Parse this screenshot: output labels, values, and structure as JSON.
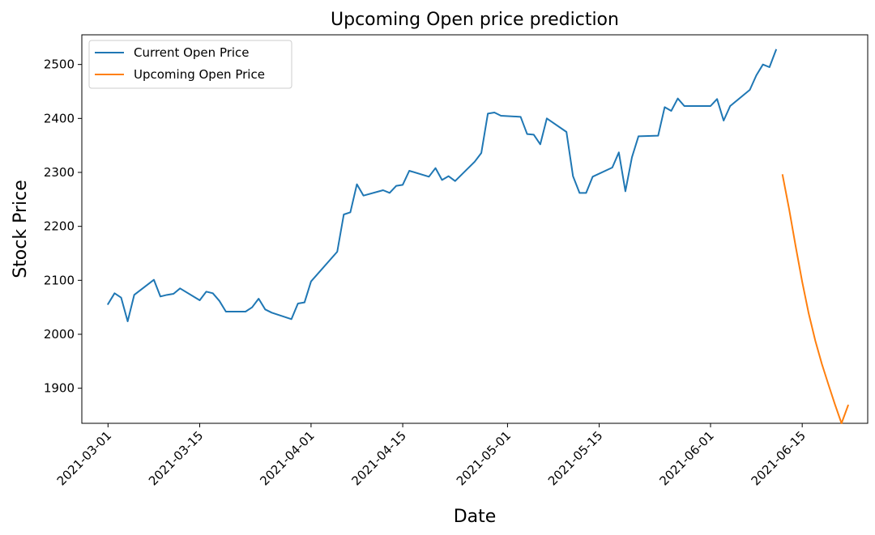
{
  "chart_data": {
    "type": "line",
    "title": "Upcoming Open price prediction",
    "xlabel": "Date",
    "ylabel": "Stock Price",
    "grid": false,
    "legend_position": "top-left",
    "x_axis_type": "date",
    "xlim": [
      "2021-02-25",
      "2021-06-25"
    ],
    "ylim": [
      1835,
      2555
    ],
    "x_ticks": [
      "2021-03-01",
      "2021-03-15",
      "2021-04-01",
      "2021-04-15",
      "2021-05-01",
      "2021-05-15",
      "2021-06-01",
      "2021-06-15"
    ],
    "y_ticks": [
      1900,
      2000,
      2100,
      2200,
      2300,
      2400,
      2500
    ],
    "series": [
      {
        "name": "Current Open Price",
        "color": "#1f77b4",
        "x": [
          "2021-03-01",
          "2021-03-02",
          "2021-03-03",
          "2021-03-04",
          "2021-03-05",
          "2021-03-08",
          "2021-03-09",
          "2021-03-10",
          "2021-03-11",
          "2021-03-12",
          "2021-03-15",
          "2021-03-16",
          "2021-03-17",
          "2021-03-18",
          "2021-03-19",
          "2021-03-22",
          "2021-03-23",
          "2021-03-24",
          "2021-03-25",
          "2021-03-26",
          "2021-03-29",
          "2021-03-30",
          "2021-03-31",
          "2021-04-01",
          "2021-04-05",
          "2021-04-06",
          "2021-04-07",
          "2021-04-08",
          "2021-04-09",
          "2021-04-12",
          "2021-04-13",
          "2021-04-14",
          "2021-04-15",
          "2021-04-16",
          "2021-04-19",
          "2021-04-20",
          "2021-04-21",
          "2021-04-22",
          "2021-04-23",
          "2021-04-26",
          "2021-04-27",
          "2021-04-28",
          "2021-04-29",
          "2021-04-30",
          "2021-05-03",
          "2021-05-04",
          "2021-05-05",
          "2021-05-06",
          "2021-05-07",
          "2021-05-10",
          "2021-05-11",
          "2021-05-12",
          "2021-05-13",
          "2021-05-14",
          "2021-05-17",
          "2021-05-18",
          "2021-05-19",
          "2021-05-20",
          "2021-05-21",
          "2021-05-24",
          "2021-05-25",
          "2021-05-26",
          "2021-05-27",
          "2021-05-28",
          "2021-06-01",
          "2021-06-02",
          "2021-06-03",
          "2021-06-04",
          "2021-06-07",
          "2021-06-08",
          "2021-06-09",
          "2021-06-10",
          "2021-06-11"
        ],
        "values": [
          2056,
          2076,
          2068,
          2024,
          2073,
          2101,
          2070,
          2073,
          2075,
          2085,
          2063,
          2079,
          2076,
          2062,
          2042,
          2042,
          2050,
          2066,
          2046,
          2040,
          2028,
          2057,
          2059,
          2098,
          2153,
          2222,
          2226,
          2278,
          2257,
          2267,
          2262,
          2275,
          2277,
          2303,
          2292,
          2308,
          2286,
          2293,
          2284,
          2320,
          2336,
          2409,
          2411,
          2405,
          2403,
          2371,
          2370,
          2352,
          2400,
          2375,
          2293,
          2262,
          2262,
          2292,
          2309,
          2337,
          2265,
          2328,
          2367,
          2368,
          2421,
          2414,
          2437,
          2423,
          2423,
          2436,
          2396,
          2423,
          2453,
          2480,
          2500,
          2495,
          2527
        ]
      },
      {
        "name": "Upcoming Open Price",
        "color": "#ff7f0e",
        "x": [
          "2021-06-12",
          "2021-06-13",
          "2021-06-14",
          "2021-06-15",
          "2021-06-16",
          "2021-06-17",
          "2021-06-18",
          "2021-06-19",
          "2021-06-20",
          "2021-06-21",
          "2021-06-22"
        ],
        "values": [
          2295,
          2232,
          2163,
          2097,
          2038,
          1988,
          1945,
          1907,
          1870,
          1835,
          1868
        ]
      }
    ]
  }
}
